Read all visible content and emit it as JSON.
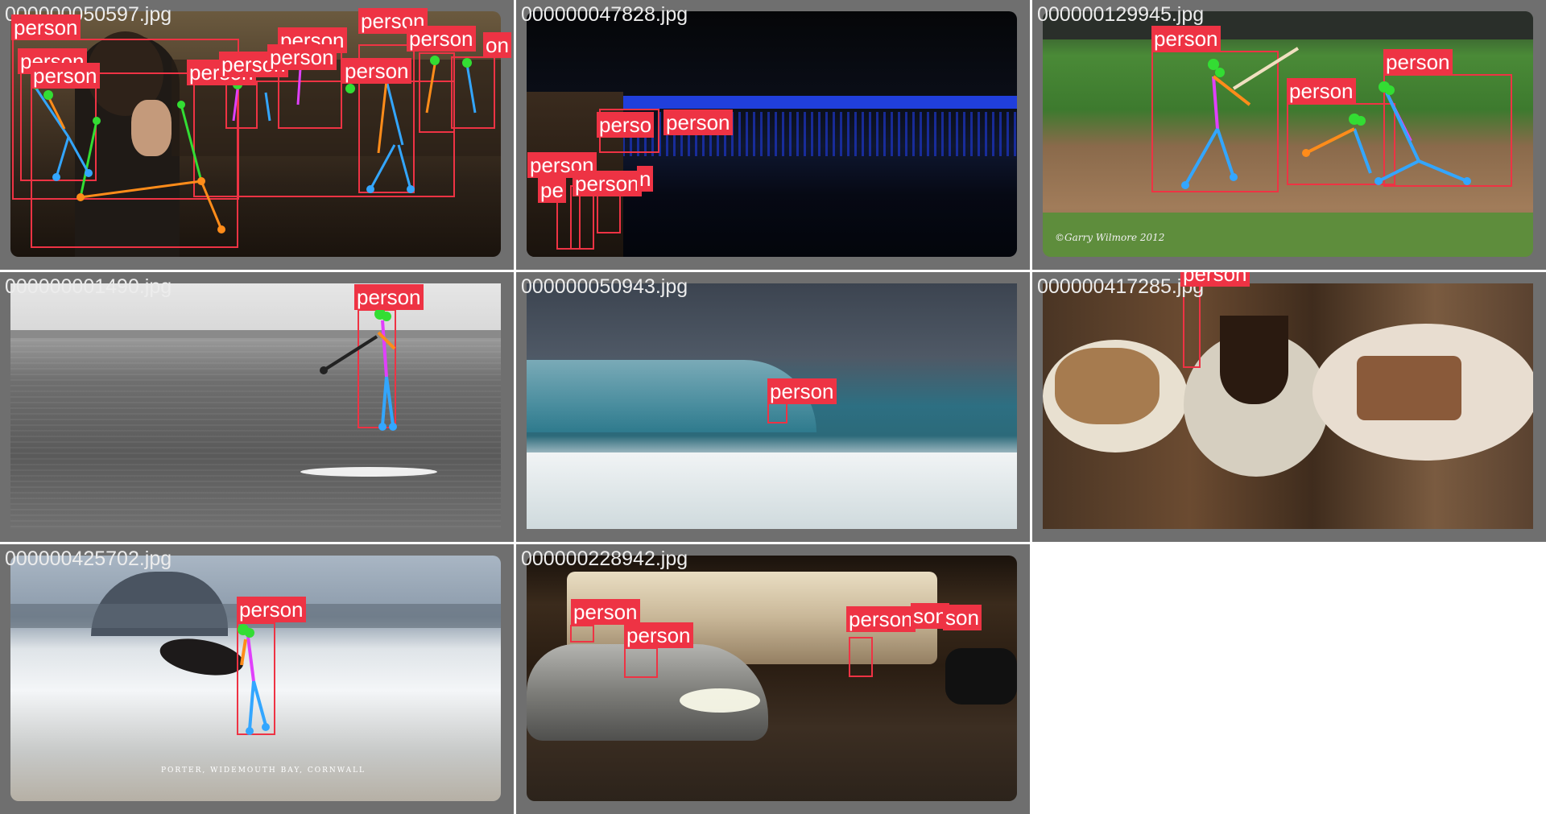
{
  "tiles": [
    {
      "filename": "000000050597.jpg",
      "labels": [
        "person",
        "person",
        "person",
        "person",
        "person",
        "person",
        "person",
        "person",
        "person",
        "person",
        "on"
      ]
    },
    {
      "filename": "000000047828.jpg",
      "labels": [
        "perso",
        "person",
        "person",
        "pe",
        "person",
        "n"
      ]
    },
    {
      "filename": "000000129945.jpg",
      "labels": [
        "person",
        "person",
        "person"
      ],
      "watermark": "©Garry Wilmore 2012"
    },
    {
      "filename": "000000001490.jpg",
      "labels": [
        "person"
      ]
    },
    {
      "filename": "000000050943.jpg",
      "labels": [
        "person"
      ]
    },
    {
      "filename": "000000417285.jpg",
      "labels": [
        "person"
      ]
    },
    {
      "filename": "000000425702.jpg",
      "labels": [
        "person"
      ],
      "caption": "PORTER, WIDEMOUTH BAY, CORNWALL"
    },
    {
      "filename": "000000228942.jpg",
      "labels": [
        "person",
        "person",
        "person",
        "son",
        "son"
      ]
    }
  ],
  "colors": {
    "box": "#ee3344",
    "tile_bg": "#6f6f6f",
    "filename_text": "#ececec"
  }
}
